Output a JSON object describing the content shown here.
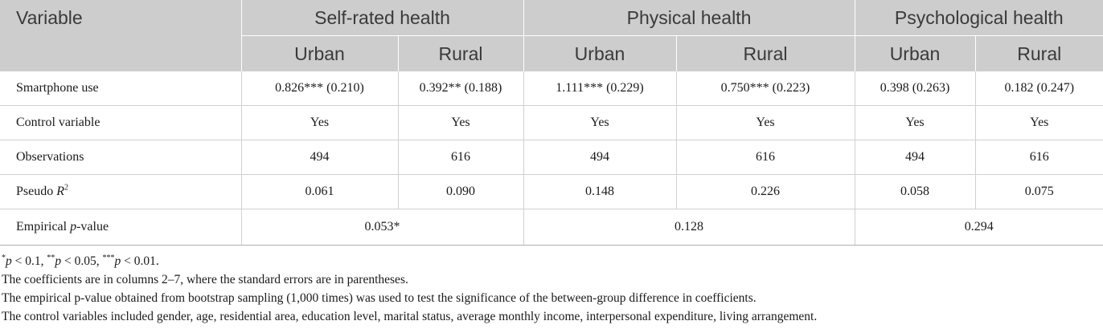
{
  "header": {
    "variable": "Variable",
    "groups": [
      "Self-rated health",
      "Physical health",
      "Psychological health"
    ],
    "sub": [
      "Urban",
      "Rural",
      "Urban",
      "Rural",
      "Urban",
      "Rural"
    ]
  },
  "rows": {
    "smartphone": {
      "label": "Smartphone use",
      "values": [
        "0.826*** (0.210)",
        "0.392** (0.188)",
        "1.111*** (0.229)",
        "0.750*** (0.223)",
        "0.398 (0.263)",
        "0.182 (0.247)"
      ]
    },
    "control": {
      "label": "Control variable",
      "values": [
        "Yes",
        "Yes",
        "Yes",
        "Yes",
        "Yes",
        "Yes"
      ]
    },
    "observations": {
      "label": "Observations",
      "values": [
        "494",
        "616",
        "494",
        "616",
        "494",
        "616"
      ]
    },
    "pseudo": {
      "label_text": "Pseudo ",
      "label_var": "R",
      "label_sup": "2",
      "values": [
        "0.061",
        "0.090",
        "0.148",
        "0.226",
        "0.058",
        "0.075"
      ]
    },
    "empirical": {
      "label_text": "Empirical ",
      "label_var": "p",
      "label_suffix": "-value",
      "values": [
        "0.053*",
        "0.128",
        "0.294"
      ]
    }
  },
  "notes": {
    "sig": [
      {
        "stars": "*",
        "var": "p",
        "rest": " < 0.1, "
      },
      {
        "stars": "**",
        "var": "p",
        "rest": " < 0.05, "
      },
      {
        "stars": "***",
        "var": "p",
        "rest": " < 0.01."
      }
    ],
    "note2": "The coefficients are in columns 2–7, where the standard errors are in parentheses.",
    "note3": "The empirical p-value obtained from bootstrap sampling (1,000 times) was used to test the significance of the between-group difference in coefficients.",
    "note4": "The control variables included gender, age, residential area, education level, marital status, average monthly income, interpersonal expenditure, living arrangement."
  }
}
